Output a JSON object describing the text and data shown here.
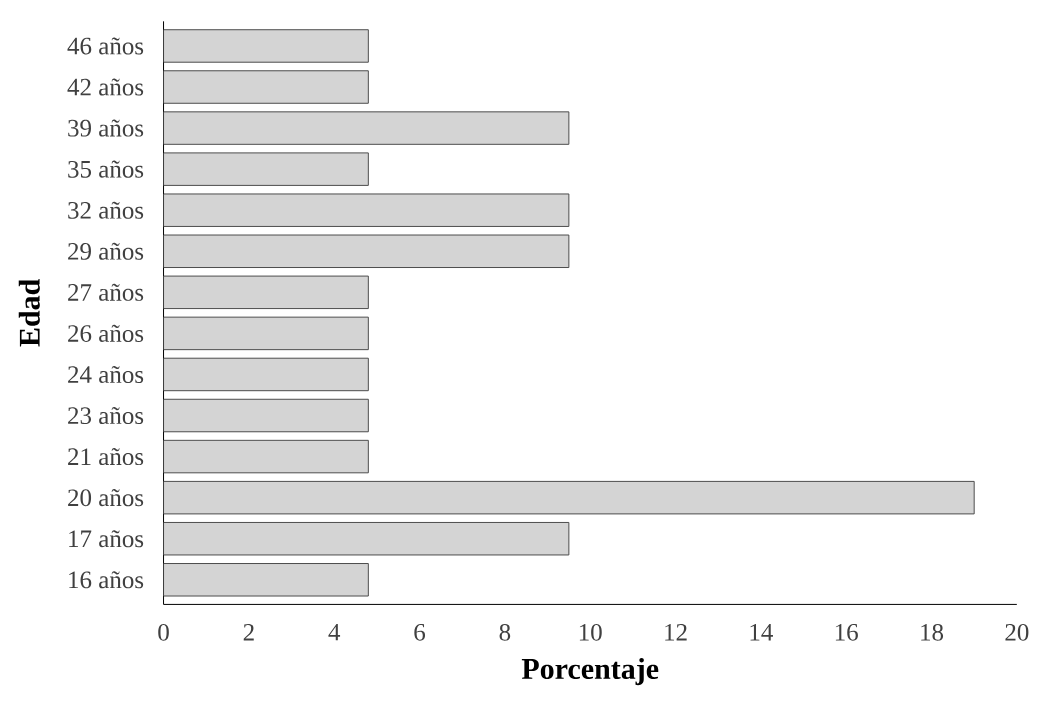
{
  "chart_data": {
    "type": "bar",
    "orientation": "horizontal",
    "xlabel": "Porcentaje",
    "ylabel": "Edad",
    "categories": [
      "46 años",
      "42 años",
      "39 años",
      "35 años",
      "32 años",
      "29 años",
      "27 años",
      "26 años",
      "24 años",
      "23 años",
      "21 años",
      "20 años",
      "17 años",
      "16 años"
    ],
    "values": [
      4.8,
      4.8,
      9.5,
      4.8,
      9.5,
      9.5,
      4.8,
      4.8,
      4.8,
      4.8,
      4.8,
      19,
      9.5,
      4.8
    ],
    "color": "#d4d4d4",
    "xlim": [
      0,
      20
    ],
    "xticks": [
      0,
      2,
      4,
      6,
      8,
      10,
      12,
      14,
      16,
      18,
      20
    ]
  }
}
